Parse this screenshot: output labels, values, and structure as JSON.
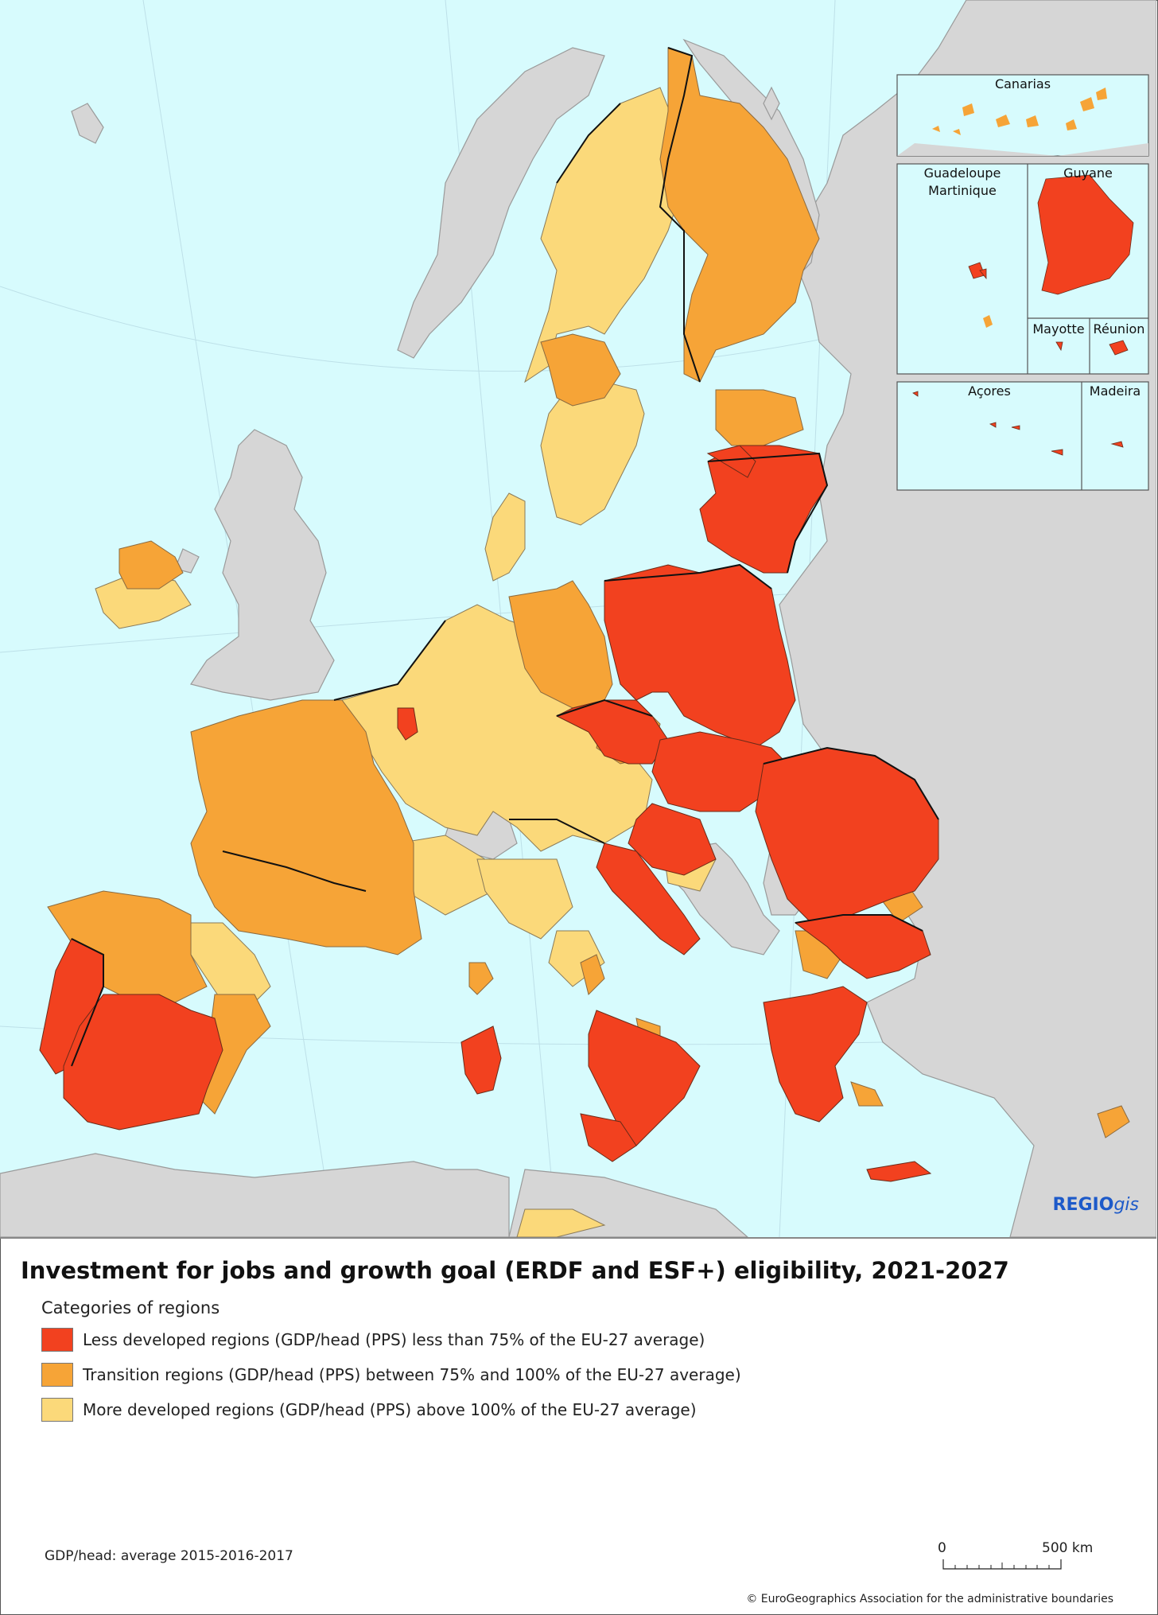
{
  "title": "Investment for jobs and growth goal (ERDF and ESF+) eligibility, 2021-2027",
  "legend": {
    "heading": "Categories of regions",
    "items": [
      {
        "label": "Less developed regions (GDP/head (PPS) less than 75% of the EU-27 average)",
        "color": "#f2411f"
      },
      {
        "label": "Transition regions (GDP/head (PPS) between 75% and 100% of the EU-27 average)",
        "color": "#f6a437"
      },
      {
        "label": "More developed regions (GDP/head (PPS) above 100% of the EU-27 average)",
        "color": "#fbd97a"
      }
    ]
  },
  "insets": {
    "canarias": "Canarias",
    "guadeloupe": "Guadeloupe",
    "martinique": "Martinique",
    "guyane": "Guyane",
    "mayotte": "Mayotte",
    "reunion": "Réunion",
    "acores": "Açores",
    "madeira": "Madeira"
  },
  "brand": {
    "bold": "REGIO",
    "italic": "gis"
  },
  "note": "GDP/head: average 2015-2016-2017",
  "scale": {
    "start": "0",
    "end": "500 km"
  },
  "copyright": "© EuroGeographics Association for the administrative boundaries",
  "colors": {
    "sea": "#d7fbfd",
    "non_eu": "#d6d6d6",
    "less": "#f2411f",
    "transition": "#f6a437",
    "more": "#fbd97a"
  }
}
